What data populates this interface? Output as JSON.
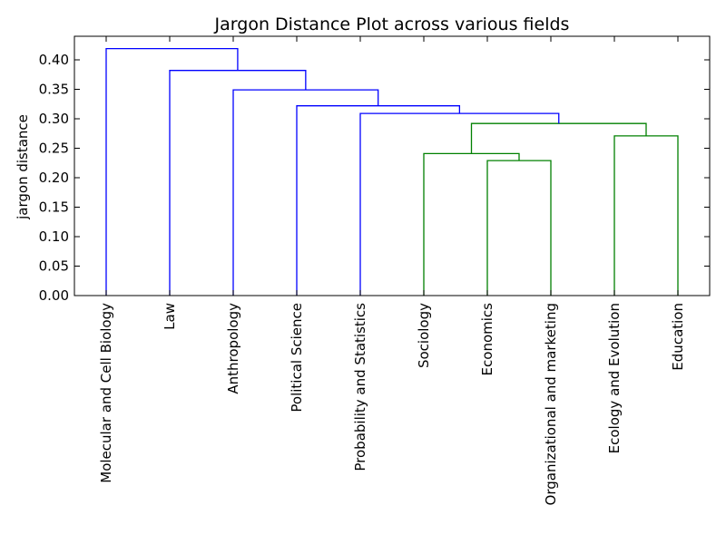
{
  "chart_data": {
    "type": "dendrogram",
    "title": "Jargon Distance Plot across various fields",
    "xlabel": "",
    "ylabel": "jargon distance",
    "ylim": [
      0.0,
      0.44
    ],
    "yticks": [
      0.0,
      0.05,
      0.1,
      0.15,
      0.2,
      0.25,
      0.3,
      0.35,
      0.4
    ],
    "ytick_labels": [
      "0.00",
      "0.05",
      "0.10",
      "0.15",
      "0.20",
      "0.25",
      "0.30",
      "0.35",
      "0.40"
    ],
    "leaves": [
      "Molecular and Cell Biology",
      "Law",
      "Anthropology",
      "Political Science",
      "Probability and Statistics",
      "Sociology",
      "Economics",
      "Organizational and marketing",
      "Ecology and Evolution",
      "Education"
    ],
    "merges": [
      {
        "left": "Economics",
        "right": "Organizational and marketing",
        "height": 0.229,
        "color": "#008000"
      },
      {
        "left": "Sociology",
        "right": "Economics + Organizational and marketing",
        "height": 0.241,
        "color": "#008000"
      },
      {
        "left": "Ecology and Evolution",
        "right": "Education",
        "height": 0.271,
        "color": "#008000"
      },
      {
        "left": "Sociology cluster",
        "right": "Ecology cluster",
        "height": 0.292,
        "color": "#008000"
      },
      {
        "left": "Probability and Statistics",
        "right": "Sociology–Education cluster",
        "height": 0.309,
        "color": "#0000ff"
      },
      {
        "left": "Political Science",
        "right": "Probability cluster",
        "height": 0.322,
        "color": "#0000ff"
      },
      {
        "left": "Anthropology",
        "right": "Political Science cluster",
        "height": 0.349,
        "color": "#0000ff"
      },
      {
        "left": "Law",
        "right": "Anthropology cluster",
        "height": 0.382,
        "color": "#0000ff"
      },
      {
        "left": "Molecular and Cell Biology",
        "right": "Law cluster",
        "height": 0.419,
        "color": "#0000ff"
      }
    ],
    "colors": {
      "above_threshold": "#0000ff",
      "cluster": "#008000",
      "axis": "#000000"
    },
    "grid": false,
    "legend": "none"
  }
}
